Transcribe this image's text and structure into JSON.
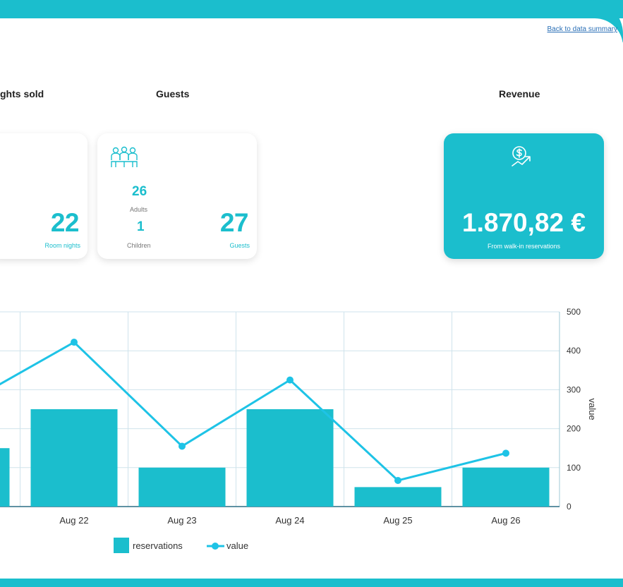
{
  "header": {
    "back_link": "Back to data summary"
  },
  "sections": {
    "nights_label": "ghts sold",
    "guests_label": "Guests",
    "revenue_label": "Revenue"
  },
  "nights_card": {
    "value": "22",
    "caption": "Room nights"
  },
  "guests_card": {
    "adults_value": "26",
    "adults_label": "Adults",
    "children_value": "1",
    "children_label": "Children",
    "total_value": "27",
    "total_label": "Guests"
  },
  "revenue_card": {
    "amount": "1.870,82 €",
    "caption": "From walk-in reservations"
  },
  "colors": {
    "accent": "#1bbecd",
    "line": "#1ec3e6",
    "link": "#2a6fb6"
  },
  "chart_data": {
    "type": "bar",
    "categories": [
      "Aug 22",
      "Aug 23",
      "Aug 24",
      "Aug 25",
      "Aug 26"
    ],
    "series": [
      {
        "name": "reservations",
        "type": "bar",
        "values": [
          250,
          100,
          250,
          50,
          100
        ]
      },
      {
        "name": "value",
        "type": "line",
        "values": [
          422,
          155,
          325,
          67,
          137
        ]
      }
    ],
    "partial_left": {
      "bar": 150,
      "line": 265
    },
    "y_axis": {
      "label": "value",
      "ticks": [
        0,
        100,
        200,
        300,
        400,
        500
      ],
      "ylim": [
        0,
        500
      ],
      "side": "right"
    },
    "legend": {
      "placement": "bottom-center",
      "entries": [
        "reservations",
        "value"
      ]
    },
    "grid": true
  }
}
